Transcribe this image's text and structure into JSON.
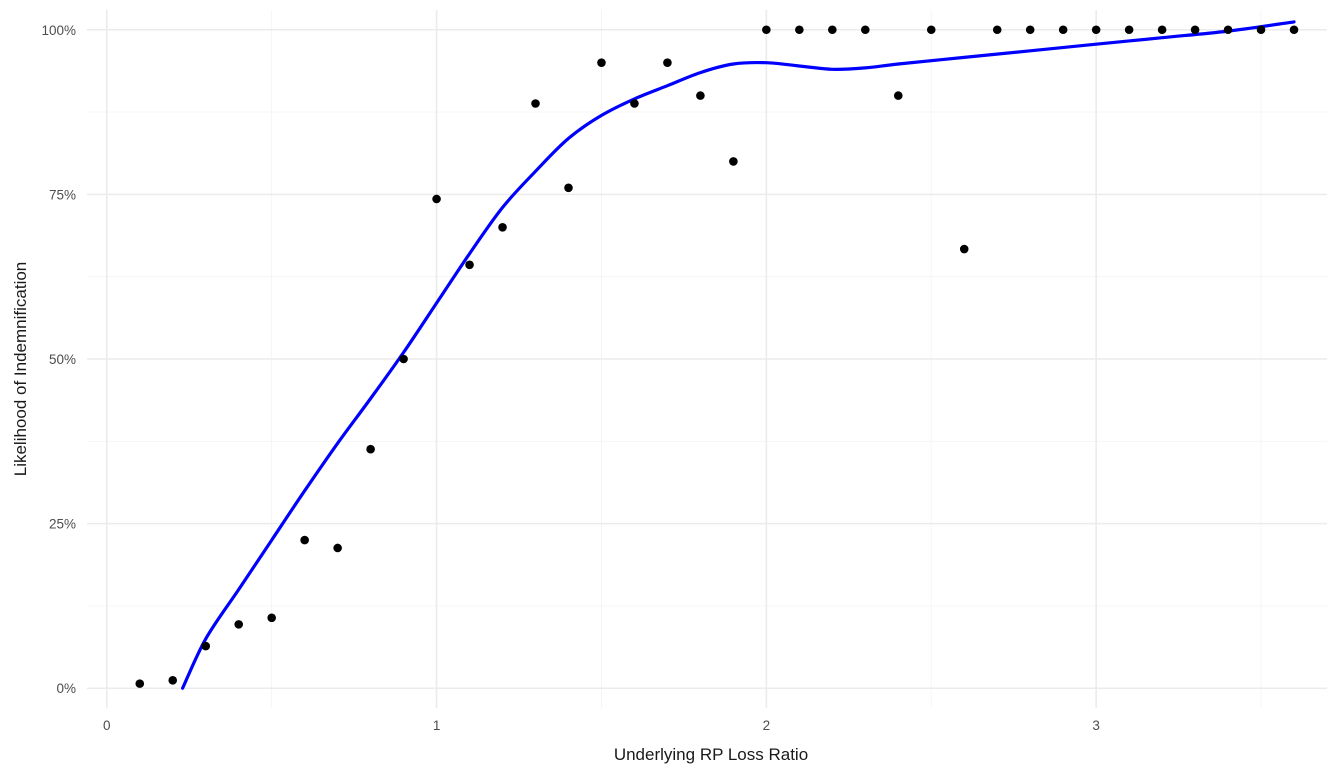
{
  "chart_data": {
    "type": "scatter",
    "title": "",
    "xlabel": "Underlying RP Loss Ratio",
    "ylabel": "Likelihood of Indemnification",
    "xlim": [
      -0.06,
      3.7
    ],
    "ylim": [
      -0.03,
      1.03
    ],
    "x_ticks": [
      0,
      1,
      2,
      3
    ],
    "x_tick_labels": [
      "0",
      "1",
      "2",
      "3"
    ],
    "y_ticks": [
      0,
      0.25,
      0.5,
      0.75,
      1.0
    ],
    "y_tick_labels": [
      "0%",
      "25%",
      "50%",
      "75%",
      "100%"
    ],
    "grid": true,
    "legend": "none",
    "colors": {
      "points": "#000000",
      "smooth": "#0000ff",
      "grid_major": "#ebebeb",
      "grid_minor": "#f4f4f4"
    },
    "series": [
      {
        "kind": "points",
        "x": [
          0.1,
          0.2,
          0.3,
          0.4,
          0.5,
          0.6,
          0.7,
          0.8,
          0.9,
          1.0,
          1.1,
          1.2,
          1.3,
          1.4,
          1.5,
          1.6,
          1.7,
          1.8,
          1.9,
          2.0,
          2.1,
          2.2,
          2.3,
          2.4,
          2.5,
          2.6,
          2.7,
          2.8,
          2.9,
          3.0,
          3.1,
          3.2,
          3.3,
          3.4,
          3.5,
          3.6
        ],
        "y": [
          0.007,
          0.012,
          0.064,
          0.097,
          0.107,
          0.225,
          0.213,
          0.363,
          0.5,
          0.743,
          0.643,
          0.7,
          0.888,
          0.76,
          0.95,
          0.888,
          0.95,
          0.9,
          0.8,
          1.0,
          1.0,
          1.0,
          1.0,
          0.9,
          1.0,
          0.667,
          1.0,
          1.0,
          1.0,
          1.0,
          1.0,
          1.0,
          1.0,
          1.0,
          1.0,
          1.0
        ]
      },
      {
        "kind": "smooth",
        "x": [
          0.23,
          0.3,
          0.4,
          0.5,
          0.6,
          0.7,
          0.8,
          0.9,
          1.0,
          1.1,
          1.2,
          1.3,
          1.4,
          1.5,
          1.6,
          1.7,
          1.8,
          1.9,
          2.0,
          2.1,
          2.2,
          2.3,
          2.4,
          2.6,
          2.8,
          3.0,
          3.2,
          3.4,
          3.6
        ],
        "y": [
          0.0,
          0.075,
          0.15,
          0.225,
          0.3,
          0.372,
          0.44,
          0.51,
          0.585,
          0.66,
          0.73,
          0.785,
          0.835,
          0.87,
          0.895,
          0.915,
          0.935,
          0.948,
          0.95,
          0.945,
          0.94,
          0.942,
          0.948,
          0.958,
          0.968,
          0.978,
          0.988,
          0.998,
          1.012
        ]
      }
    ]
  }
}
